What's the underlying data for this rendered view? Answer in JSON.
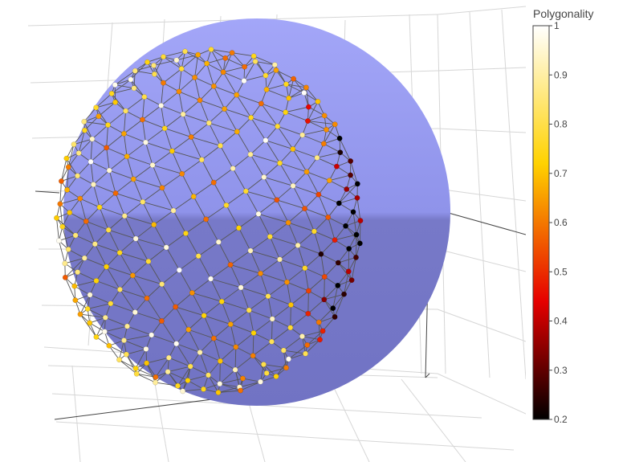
{
  "chart_data": {
    "type": "scatter",
    "variant": "3d-mesh-scatter-on-sphere",
    "title": "",
    "colorbar": {
      "title": "Polygonality",
      "ticks": [
        "0.2",
        "0.3",
        "0.4",
        "0.5",
        "0.6",
        "0.7",
        "0.8",
        "0.9",
        "1"
      ],
      "range": [
        0.2,
        1.0
      ],
      "colorscale": [
        "#000000",
        "#e60000",
        "#ffd200",
        "#ffffff"
      ]
    },
    "sphere_color": "#8f93ea",
    "edge_color": "#555555",
    "grid": true,
    "axes_labels": {
      "x": "",
      "y": "",
      "z": ""
    }
  }
}
